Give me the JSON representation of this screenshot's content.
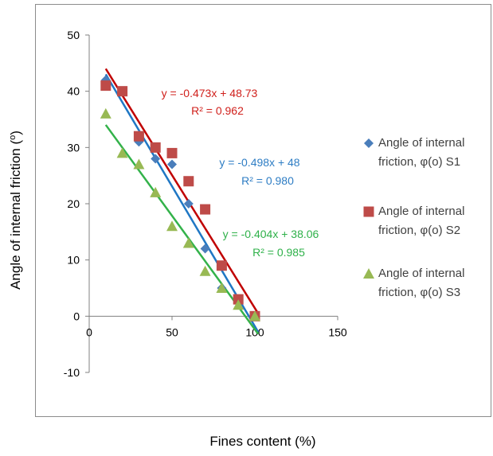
{
  "chart_data": {
    "type": "scatter",
    "xlabel": "Fines content (%)",
    "ylabel_prefix": "Angle of internal friction (",
    "ylabel_sup": "o",
    "ylabel_suffix": ")",
    "xlim": [
      -10,
      150
    ],
    "ylim": [
      -10,
      50
    ],
    "x_ticks": [
      0,
      50,
      100,
      150
    ],
    "y_ticks": [
      -10,
      0,
      10,
      20,
      30,
      40,
      50
    ],
    "grid": false,
    "legend_position": "right",
    "series": [
      {
        "name": "Angle of internal friction, φ(o) S1",
        "legend_lines": [
          "Angle of internal",
          "friction, φ(o) S1"
        ],
        "marker": "diamond",
        "color": "#4a7ebb",
        "line_color": "#1f77c4",
        "x": [
          10,
          20,
          30,
          40,
          50,
          60,
          70,
          80,
          90,
          100
        ],
        "y": [
          42,
          40,
          31,
          28,
          27,
          20,
          12,
          5,
          3,
          0
        ],
        "trendline": {
          "slope": -0.498,
          "intercept": 48,
          "equation": "y = -0.498x + 48",
          "r2": "R² = 0.980"
        }
      },
      {
        "name": "Angle of internal friction, φ(o) S2",
        "legend_lines": [
          "Angle of internal",
          "friction, φ(o) S2"
        ],
        "marker": "square",
        "color": "#be4b48",
        "line_color": "#c00000",
        "x": [
          10,
          20,
          30,
          40,
          50,
          60,
          70,
          80,
          90,
          100
        ],
        "y": [
          41,
          40,
          32,
          30,
          29,
          24,
          19,
          9,
          3,
          0
        ],
        "trendline": {
          "slope": -0.473,
          "intercept": 48.73,
          "equation": "y = -0.473x + 48.73",
          "r2": "R² = 0.962"
        }
      },
      {
        "name": "Angle of internal friction, φ(o) S3",
        "legend_lines": [
          "Angle of internal",
          "friction, φ(o) S3"
        ],
        "marker": "triangle",
        "color": "#98b954",
        "line_color": "#33b24a",
        "x": [
          10,
          20,
          30,
          40,
          50,
          60,
          70,
          80,
          90,
          100
        ],
        "y": [
          36,
          29,
          27,
          22,
          16,
          13,
          8,
          5,
          2,
          0
        ],
        "trendline": {
          "slope": -0.404,
          "intercept": 38.06,
          "equation": "y = -0.404x + 38.06",
          "r2": "R² = 0.985"
        }
      }
    ]
  }
}
